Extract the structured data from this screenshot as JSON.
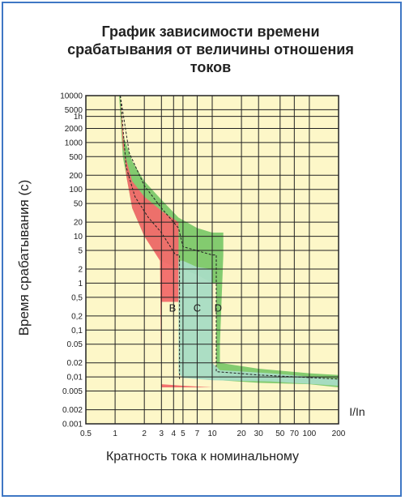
{
  "title_lines": [
    "График зависимости времени",
    "срабатывания от величины отношения",
    "токов"
  ],
  "ylabel": "Время срабатывания (с)",
  "xlabel": "Кратность тока к номинальному",
  "x_unit_label": "I/In",
  "colors": {
    "background": "#fdf7c8",
    "grid": "#222222",
    "curve_b": "#f26a6a",
    "curve_c": "#a8dcc4",
    "curve_d": "#7cc86a",
    "frame": "#3f77c4"
  },
  "chart_data": {
    "type": "area",
    "title": "График зависимости времени срабатывания от величины отношения токов",
    "xlabel": "Кратность тока к номинальному",
    "ylabel": "Время срабатывания (с)",
    "x_scale": "log",
    "y_scale": "log",
    "xlim": [
      0.5,
      200
    ],
    "ylim": [
      0.001,
      10000
    ],
    "grid": true,
    "x_ticks": [
      {
        "v": 0.5,
        "label": "0.5"
      },
      {
        "v": 1,
        "label": "1"
      },
      {
        "v": 2,
        "label": "2"
      },
      {
        "v": 3,
        "label": "3"
      },
      {
        "v": 4,
        "label": "4"
      },
      {
        "v": 5,
        "label": "5"
      },
      {
        "v": 7,
        "label": "7"
      },
      {
        "v": 10,
        "label": "10"
      },
      {
        "v": 20,
        "label": "20"
      },
      {
        "v": 30,
        "label": "30"
      },
      {
        "v": 50,
        "label": "50"
      },
      {
        "v": 70,
        "label": "70"
      },
      {
        "v": 100,
        "label": "100"
      },
      {
        "v": 200,
        "label": "200"
      }
    ],
    "y_ticks": [
      {
        "v": 10000,
        "label": "10000"
      },
      {
        "v": 5000,
        "label": "5000"
      },
      {
        "v": 3600,
        "label": "1h"
      },
      {
        "v": 2000,
        "label": "2000"
      },
      {
        "v": 1000,
        "label": "1000"
      },
      {
        "v": 500,
        "label": "500"
      },
      {
        "v": 200,
        "label": "200"
      },
      {
        "v": 100,
        "label": "100"
      },
      {
        "v": 50,
        "label": "50"
      },
      {
        "v": 20,
        "label": "20"
      },
      {
        "v": 10,
        "label": "10"
      },
      {
        "v": 5,
        "label": "5"
      },
      {
        "v": 2,
        "label": "2"
      },
      {
        "v": 1,
        "label": "1"
      },
      {
        "v": 0.5,
        "label": "0,5"
      },
      {
        "v": 0.2,
        "label": "0,2"
      },
      {
        "v": 0.1,
        "label": "0,1"
      },
      {
        "v": 0.05,
        "label": "0.05"
      },
      {
        "v": 0.02,
        "label": "0.02"
      },
      {
        "v": 0.01,
        "label": "0,01"
      },
      {
        "v": 0.005,
        "label": "0.005"
      },
      {
        "v": 0.002,
        "label": "0.002"
      },
      {
        "v": 0.001,
        "label": "0.001"
      }
    ],
    "series": [
      {
        "name": "B",
        "color": "#f26a6a",
        "polygon": [
          [
            1.13,
            10000
          ],
          [
            1.2,
            800
          ],
          [
            1.5,
            150
          ],
          [
            2,
            70
          ],
          [
            3,
            35
          ],
          [
            4.5,
            20
          ],
          [
            4.5,
            0.4
          ],
          [
            3,
            0.4
          ],
          [
            3,
            0.007
          ],
          [
            5,
            0.0065
          ],
          [
            10,
            0.006
          ],
          [
            3,
            0.006
          ],
          [
            2.9,
            3
          ],
          [
            2,
            10
          ],
          [
            1.5,
            40
          ],
          [
            1.3,
            200
          ],
          [
            1.13,
            10000
          ]
        ],
        "label_at": [
          3.9,
          0.25
        ]
      },
      {
        "name": "C",
        "color": "#a8dcc4",
        "polygon": [
          [
            4.5,
            3
          ],
          [
            5,
            3
          ],
          [
            7,
            2.2
          ],
          [
            10,
            2
          ],
          [
            10,
            0.02
          ],
          [
            12,
            0.014
          ],
          [
            40,
            0.012
          ],
          [
            200,
            0.009
          ],
          [
            200,
            0.0065
          ],
          [
            40,
            0.008
          ],
          [
            10,
            0.0085
          ],
          [
            5,
            0.0095
          ],
          [
            4.5,
            0.012
          ]
        ],
        "label_at": [
          7,
          0.25
        ]
      },
      {
        "name": "D",
        "color": "#7cc86a",
        "polygon": [
          [
            1.13,
            10000
          ],
          [
            1.2,
            1500
          ],
          [
            1.5,
            400
          ],
          [
            2,
            150
          ],
          [
            3,
            60
          ],
          [
            4.5,
            25
          ],
          [
            7,
            15
          ],
          [
            10,
            12
          ],
          [
            13,
            12
          ],
          [
            13,
            4
          ],
          [
            12,
            0.05
          ],
          [
            12,
            0.02
          ],
          [
            30,
            0.015
          ],
          [
            100,
            0.012
          ],
          [
            200,
            0.011
          ],
          [
            200,
            0.006
          ],
          [
            100,
            0.007
          ],
          [
            30,
            0.0075
          ],
          [
            12,
            0.0085
          ],
          [
            11,
            0.02
          ],
          [
            11,
            1
          ],
          [
            10,
            1
          ],
          [
            7,
            1.5
          ],
          [
            5,
            2
          ],
          [
            4.5,
            2
          ],
          [
            3,
            3
          ],
          [
            2,
            10
          ],
          [
            1.5,
            40
          ],
          [
            1.2,
            500
          ],
          [
            1.1,
            10000
          ]
        ],
        "label_at": [
          11.5,
          0.25
        ]
      }
    ],
    "dashed_curves": [
      {
        "name": "B-mid",
        "points": [
          [
            1.13,
            10000
          ],
          [
            1.3,
            300
          ],
          [
            1.6,
            70
          ],
          [
            2.2,
            25
          ],
          [
            3,
            12
          ],
          [
            4.2,
            4
          ],
          [
            4.6,
            4
          ],
          [
            4.6,
            0.009
          ]
        ]
      },
      {
        "name": "C-mid",
        "points": [
          [
            1.13,
            10000
          ],
          [
            1.4,
            600
          ],
          [
            2,
            120
          ],
          [
            3,
            40
          ],
          [
            4.5,
            15
          ],
          [
            5,
            6
          ],
          [
            10,
            4
          ],
          [
            11,
            4
          ],
          [
            11,
            0.013
          ],
          [
            30,
            0.011
          ],
          [
            200,
            0.009
          ]
        ]
      }
    ]
  }
}
